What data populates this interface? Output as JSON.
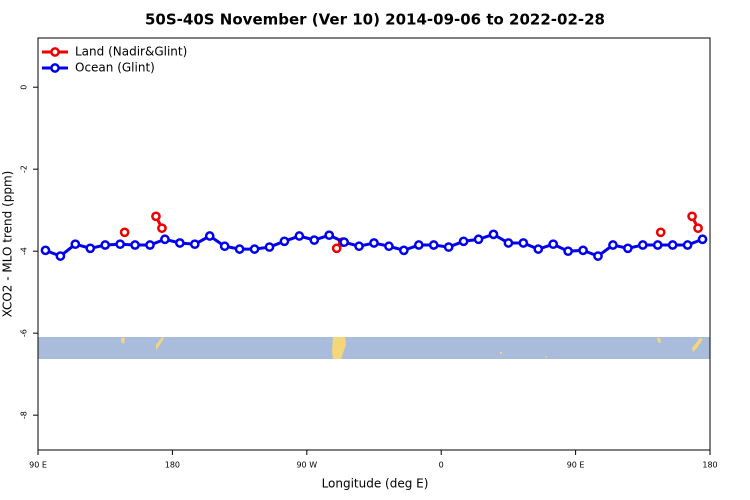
{
  "chart_data": {
    "type": "line",
    "title": "50S-40S November (Ver 10)   2014-09-06 to 2022-02-28",
    "x_label": "Longitude (deg E)",
    "y_label": "XCO2 - MLO trend (ppm)",
    "xlim": [
      90,
      540
    ],
    "ylim": [
      -8.85,
      1.2
    ],
    "xticks": [
      {
        "value": 90,
        "label": "90 E"
      },
      180,
      {
        "value": 270,
        "label": "90 W"
      },
      {
        "value": 360,
        "label": "0"
      },
      {
        "value": 450,
        "label": "90 E"
      },
      {
        "value": 540,
        "label": "180"
      }
    ],
    "yticks": [
      0,
      -2,
      -4,
      -6,
      -8
    ],
    "legend": "top-left",
    "series": [
      {
        "name": "Land (Nadir&Glint)",
        "color": "#ee0000",
        "x": [
          148,
          169,
          173,
          290,
          294,
          507,
          528,
          532
        ],
        "values": [
          -3.54,
          -3.15,
          -3.44,
          -3.93,
          -3.78,
          -3.54,
          -3.15,
          -3.44
        ]
      },
      {
        "name": "Ocean (Glint)",
        "color": "#0000ee",
        "x": [
          95,
          105,
          115,
          125,
          135,
          145,
          155,
          165,
          175,
          185,
          195,
          205,
          215,
          225,
          235,
          245,
          255,
          265,
          275,
          285,
          295,
          305,
          315,
          325,
          335,
          345,
          355,
          365,
          375,
          385,
          395,
          405,
          415,
          425,
          435,
          445,
          455,
          465,
          475,
          485,
          495,
          505,
          515,
          525,
          535
        ],
        "values": [
          -3.98,
          -4.12,
          -3.83,
          -3.93,
          -3.85,
          -3.83,
          -3.85,
          -3.85,
          -3.71,
          -3.8,
          -3.83,
          -3.63,
          -3.88,
          -3.95,
          -3.95,
          -3.9,
          -3.76,
          -3.63,
          -3.73,
          -3.61,
          -3.78,
          -3.88,
          -3.8,
          -3.88,
          -3.98,
          -3.85,
          -3.85,
          -3.9,
          -3.76,
          -3.71,
          -3.59,
          -3.8,
          -3.8,
          -3.95,
          -3.83,
          -4.0,
          -3.98,
          -4.12,
          -3.85,
          -3.93,
          -3.85,
          -3.85,
          -3.85,
          -3.85,
          -3.71
        ]
      }
    ]
  }
}
